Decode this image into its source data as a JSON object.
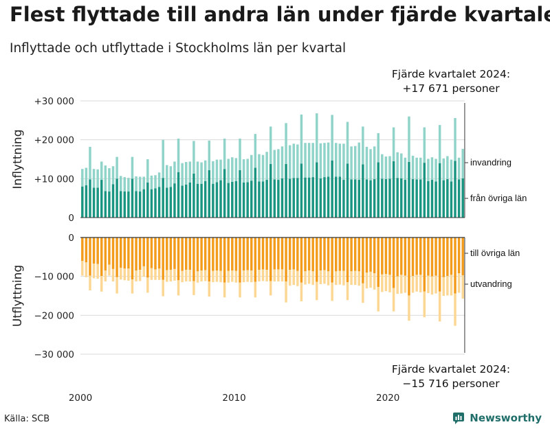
{
  "title": "Flest flyttade till andra län under fjärde kvartalet",
  "subtitle": "Inflyttade och utflyttade i Stockholms län per kvartal",
  "annotation_top": {
    "line1": "Fjärde kvartalet 2024:",
    "line2": "+17 671 personer"
  },
  "annotation_bottom": {
    "line1": "Fjärde kvartalet 2024:",
    "line2": "−15 716 personer"
  },
  "source": "Källa: SCB",
  "brand": {
    "name": "Newsworthy",
    "icon": "newsworthy-logo-icon"
  },
  "colors": {
    "from_other_counties": "#1a9581",
    "immigration": "#8fd3c9",
    "to_other_counties": "#f39c1b",
    "emigration": "#fcd793",
    "grid": "#d9d9d9"
  },
  "chart_data": {
    "type": "bar",
    "stacked": true,
    "x_start": 2000,
    "x_ticks": [
      "2000",
      "2010",
      "2020"
    ],
    "top_panel": {
      "ylabel": "Inflyttning",
      "ylim": [
        0,
        30000
      ],
      "yticks": [
        "0",
        "+10 000",
        "+20 000",
        "+30 000"
      ],
      "series": [
        {
          "name": "från övriga län",
          "values": [
            8000,
            8300,
            9800,
            7700,
            7700,
            9700,
            6800,
            6700,
            8600,
            10000,
            6800,
            6700,
            6700,
            10000,
            6800,
            6700,
            7300,
            9000,
            7300,
            7500,
            7900,
            10200,
            7700,
            7900,
            8800,
            11700,
            8200,
            8500,
            9000,
            11300,
            8700,
            8700,
            9400,
            12200,
            8700,
            9100,
            9600,
            12500,
            8900,
            9200,
            9400,
            12200,
            9000,
            9100,
            9500,
            12800,
            9300,
            9300,
            9700,
            13800,
            9800,
            9700,
            10100,
            13800,
            10000,
            10200,
            10200,
            13900,
            10300,
            10300,
            10400,
            14200,
            10100,
            10400,
            10500,
            14700,
            10500,
            10500,
            9700,
            13900,
            9800,
            9800,
            9700,
            13700,
            9800,
            9600,
            9900,
            14200,
            10000,
            9900,
            10000,
            14500,
            10200,
            10100,
            9700,
            14300,
            9900,
            9800,
            9800,
            14100,
            9400,
            9700,
            9300,
            14000,
            9600,
            9900,
            9300,
            14600,
            9800,
            10100
          ]
        },
        {
          "name": "invandring",
          "values": [
            4500,
            4500,
            8400,
            4800,
            4700,
            4700,
            6600,
            6000,
            4600,
            5600,
            3900,
            3700,
            3500,
            5600,
            3800,
            3800,
            3200,
            6000,
            3500,
            3400,
            3700,
            9800,
            5800,
            5300,
            5600,
            8600,
            5800,
            5800,
            5400,
            8400,
            5700,
            5500,
            5300,
            7600,
            5800,
            5800,
            5300,
            7800,
            6200,
            6300,
            5900,
            8100,
            6000,
            6000,
            6600,
            8700,
            7000,
            6800,
            7200,
            9600,
            7600,
            7900,
            8200,
            10500,
            8600,
            8800,
            8600,
            12600,
            8900,
            8900,
            8800,
            12600,
            9000,
            8800,
            8800,
            11700,
            8700,
            8500,
            9300,
            10700,
            8500,
            8600,
            9600,
            9700,
            8400,
            8000,
            8400,
            7500,
            6300,
            5800,
            5800,
            8700,
            6600,
            6400,
            5700,
            11700,
            6000,
            5600,
            5600,
            9100,
            5700,
            5800,
            5800,
            9800,
            5600,
            5900,
            5600,
            11000,
            5600,
            7571
          ]
        }
      ]
    },
    "bottom_panel": {
      "ylabel": "Utflyttning",
      "ylim": [
        -30000,
        0
      ],
      "yticks": [
        "0",
        "−10 000",
        "−20 000",
        "−30 000"
      ],
      "series": [
        {
          "name": "till övriga län",
          "values": [
            6000,
            6400,
            9800,
            6700,
            6800,
            9900,
            8500,
            7000,
            8100,
            10200,
            7800,
            8000,
            8000,
            10800,
            8500,
            8300,
            7400,
            10300,
            7900,
            8200,
            8000,
            10900,
            8400,
            8300,
            8100,
            11000,
            8600,
            8300,
            8300,
            11200,
            8700,
            8500,
            8400,
            11300,
            8600,
            8500,
            8600,
            11600,
            8600,
            8500,
            8600,
            11600,
            8500,
            8400,
            8500,
            11400,
            8300,
            8200,
            8300,
            11200,
            8200,
            8200,
            8200,
            11300,
            8300,
            8200,
            8600,
            11600,
            8700,
            8500,
            8700,
            11400,
            8500,
            8400,
            8700,
            11600,
            8700,
            8600,
            8600,
            11500,
            8700,
            8600,
            8700,
            11800,
            9000,
            8800,
            9200,
            12700,
            9500,
            9400,
            9600,
            13000,
            10000,
            9600,
            9800,
            14900,
            9900,
            9600,
            9600,
            13900,
            9800,
            10000,
            9800,
            13900,
            10200,
            9900,
            9600,
            14400,
            9200,
            9716
          ]
        },
        {
          "name": "utvandring",
          "values": [
            3800,
            3800,
            3800,
            3800,
            3800,
            4000,
            2800,
            2800,
            3200,
            4200,
            3000,
            3000,
            3100,
            3600,
            2800,
            2900,
            2700,
            3900,
            3000,
            2700,
            2900,
            4200,
            3000,
            3000,
            3000,
            3900,
            2900,
            3000,
            3000,
            3600,
            2900,
            2800,
            2800,
            3900,
            2900,
            2900,
            2900,
            3800,
            3000,
            2900,
            3000,
            3800,
            3000,
            3000,
            3000,
            4000,
            3000,
            3000,
            3000,
            3700,
            3100,
            3100,
            3100,
            5400,
            4100,
            4000,
            3900,
            4800,
            3400,
            3400,
            3500,
            4700,
            3500,
            3500,
            3600,
            4700,
            3500,
            3500,
            3700,
            4600,
            3500,
            3600,
            3700,
            5000,
            4100,
            4100,
            4200,
            6300,
            4500,
            4400,
            4500,
            6000,
            4500,
            4800,
            4400,
            6500,
            4300,
            4300,
            4500,
            6600,
            4500,
            4700,
            4600,
            7700,
            4800,
            5000,
            5300,
            8300,
            5000,
            6000
          ]
        }
      ]
    },
    "legend": [
      "invandring",
      "från övriga län",
      "till övriga län",
      "utvandring"
    ]
  }
}
